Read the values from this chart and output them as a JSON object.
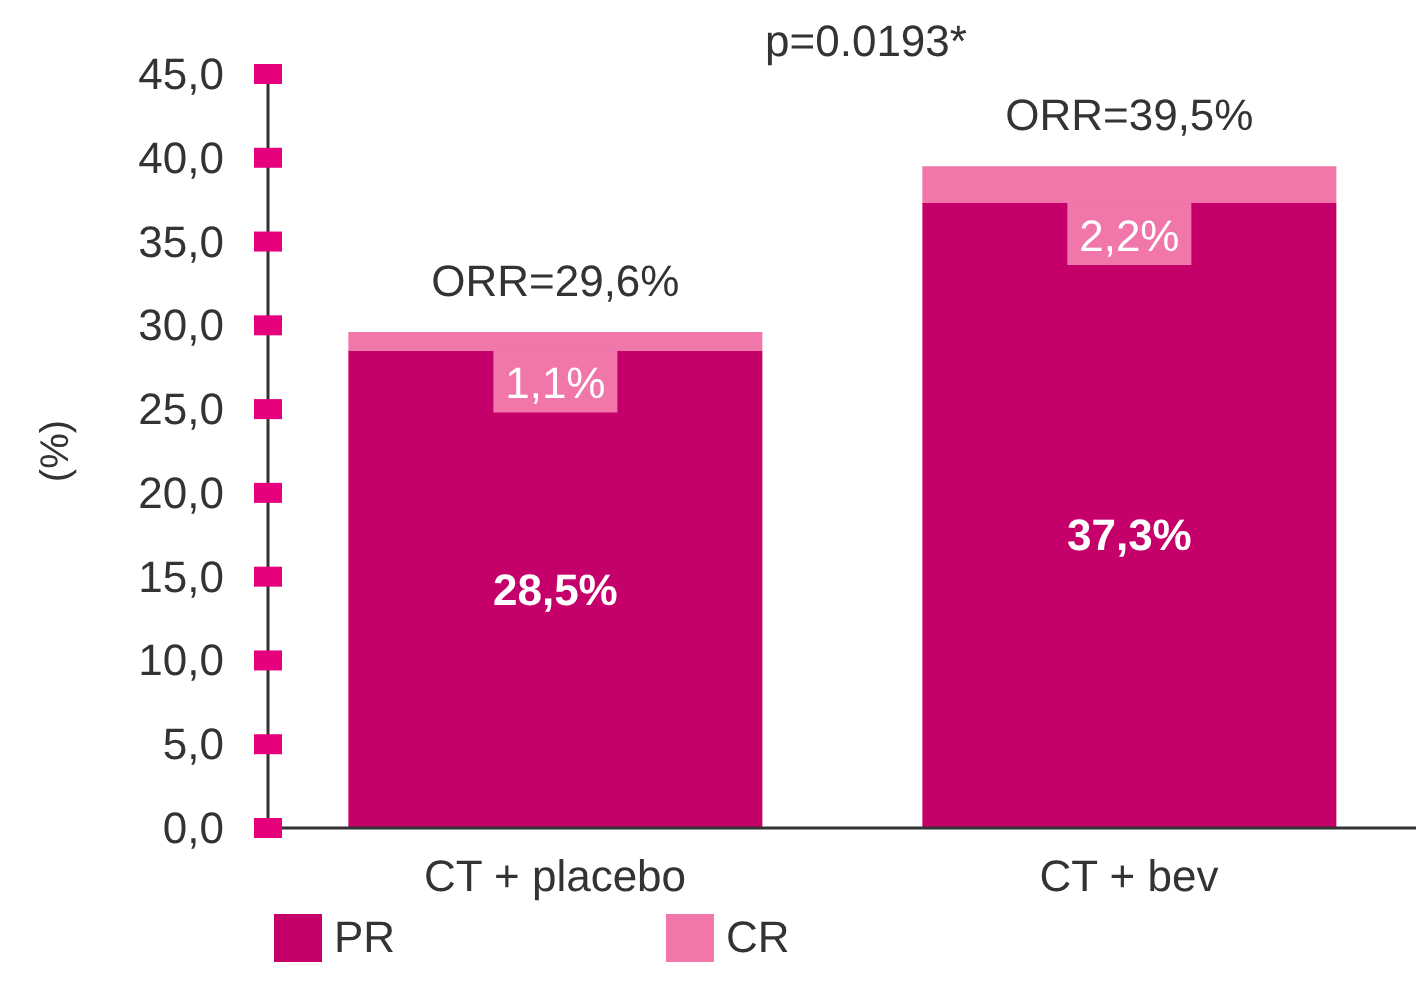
{
  "chart_data": {
    "type": "bar",
    "stacked": true,
    "categories": [
      "CT + placebo",
      "CT + bev"
    ],
    "series": [
      {
        "name": "PR",
        "color": "#c5006b",
        "values": [
          28.5,
          37.3
        ],
        "value_labels": [
          "28,5%",
          "37,3%"
        ]
      },
      {
        "name": "CR",
        "color": "#f176a9",
        "values": [
          1.1,
          2.2
        ],
        "value_labels": [
          "1,1%",
          "2,2%"
        ]
      }
    ],
    "totals": [
      "ORR=29,6%",
      "ORR=39,5%"
    ],
    "ylabel": "(%)",
    "ylim": [
      0,
      45
    ],
    "yticks": [
      {
        "value": 0,
        "label": "0,0"
      },
      {
        "value": 5,
        "label": "5,0"
      },
      {
        "value": 10,
        "label": "10,0"
      },
      {
        "value": 15,
        "label": "15,0"
      },
      {
        "value": 20,
        "label": "20,0"
      },
      {
        "value": 25,
        "label": "25,0"
      },
      {
        "value": 30,
        "label": "30,0"
      },
      {
        "value": 35,
        "label": "35,0"
      },
      {
        "value": 40,
        "label": "40,0"
      },
      {
        "value": 45,
        "label": "45,0"
      }
    ],
    "annotations": [
      "p=0.0193*"
    ],
    "legend": "bottom"
  }
}
